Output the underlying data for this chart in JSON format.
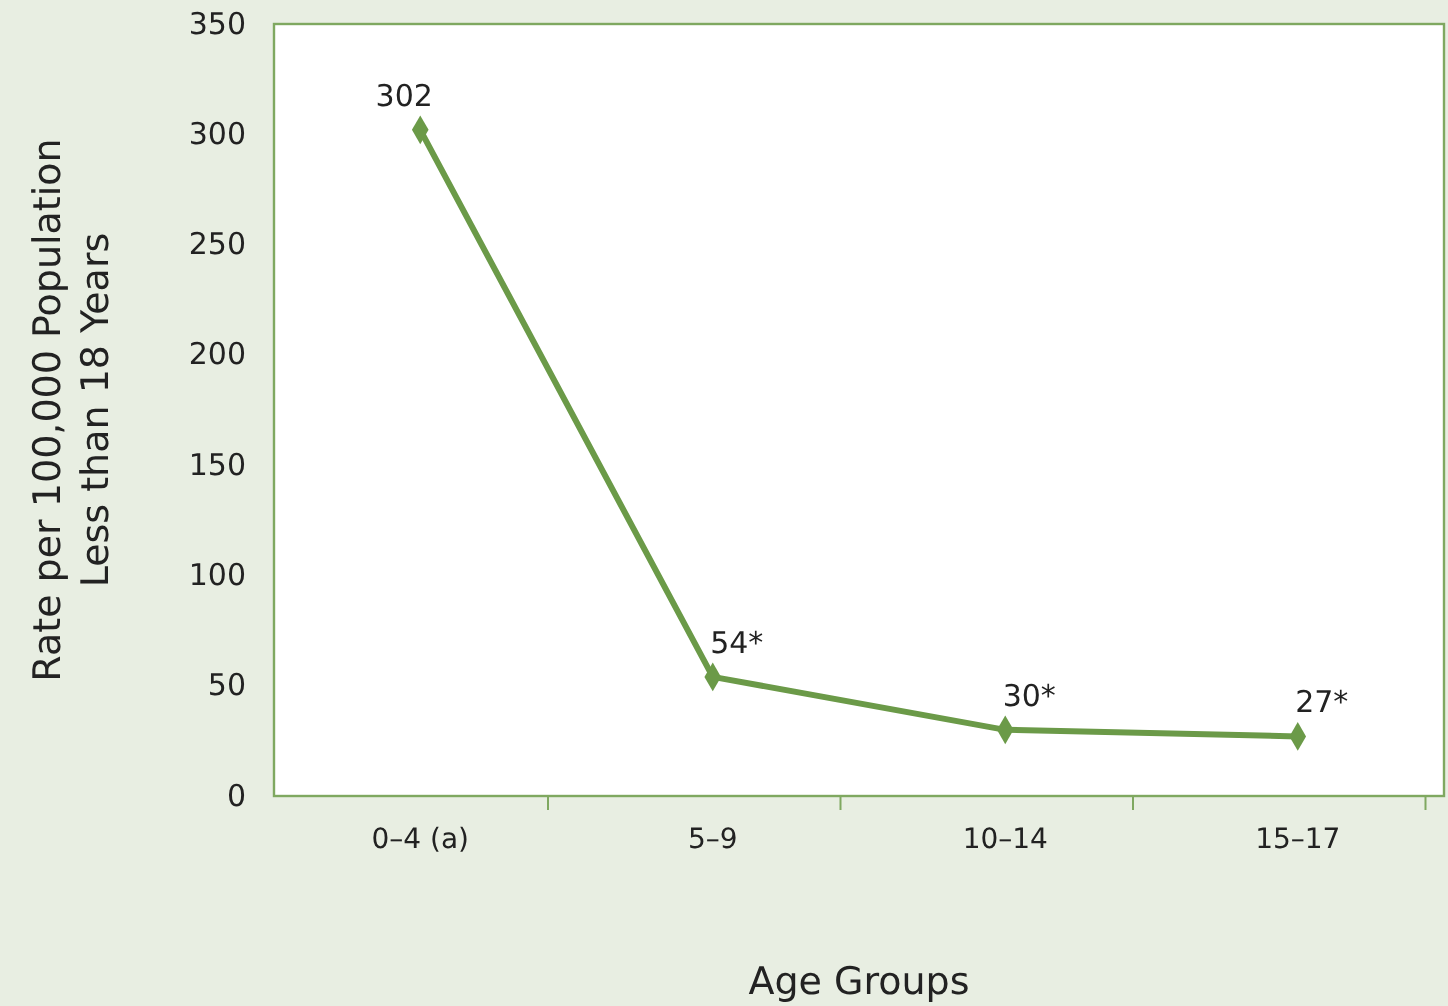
{
  "chart_data": {
    "type": "line",
    "xlabel": "Age Groups",
    "ylabel": "Rate per 100,000 Population\nLess than 18 Years",
    "categories": [
      "0–4 (a)",
      "5–9",
      "10–14",
      "15–17"
    ],
    "series": [
      {
        "color": "#6b9a48",
        "values": [
          302,
          54,
          30,
          27
        ],
        "value_labels": [
          "302",
          "54*",
          "30*",
          "27*"
        ]
      }
    ],
    "ylim": [
      0,
      350
    ],
    "yticks": [
      0,
      50,
      100,
      150,
      200,
      250,
      300,
      350
    ],
    "marker": "diamond",
    "line_style": "solid"
  }
}
